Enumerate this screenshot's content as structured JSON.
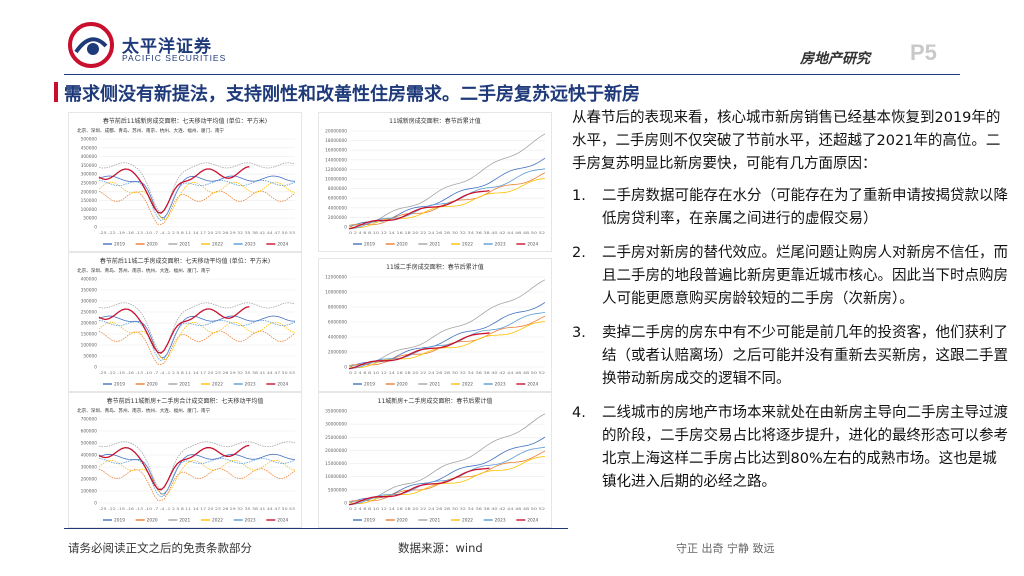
{
  "header": {
    "logo_cn": "太平洋证券",
    "logo_en": "PACIFIC SECURITIES",
    "section": "房地产研究",
    "page": "P5"
  },
  "title": "需求侧没有新提法，支持刚性和改善性住房需求。二手房复苏远快于新房",
  "charts": [
    {
      "title": "春节前后11城新房成交面积：七天移动平均值",
      "note": "(单位：平方米)",
      "sub": "北京、深圳、成都、青岛、苏州、南京、杭州、大连、福州、厦门、南宁",
      "yticks": [
        "500000",
        "450000",
        "400000",
        "350000",
        "300000",
        "250000",
        "200000",
        "150000",
        "100000",
        "50000",
        "0"
      ],
      "xticks": "-25 -22 -19 -16 -13 -10 -7 -4 -1 2 5 8 11 14 17 20 23 26 29 32 35 38 41 44 47 50 53",
      "legend": [
        "2019",
        "2020",
        "2021",
        "2022",
        "2023",
        "2024"
      ]
    },
    {
      "title": "11城新房成交面积：春节后累计值",
      "sub": "",
      "yticks": [
        "20000000",
        "18000000",
        "16000000",
        "14000000",
        "12000000",
        "10000000",
        "8000000",
        "6000000",
        "4000000",
        "2000000",
        "0"
      ],
      "xticks": "0 2 4 6 8 10 12 14 16 18 20 22 24 26 28 30 32 34 36 38 40 42 44 46 48 50 52",
      "legend": [
        "2019",
        "2020",
        "2021",
        "2022",
        "2023",
        "2024"
      ]
    },
    {
      "title": "春节前后11城二手房成交面积：七天移动平均值",
      "note": "(单位：平方米)",
      "sub": "北京、深圳、青岛、苏州、南京、杭州、大连、福州、厦门、南宁",
      "yticks": [
        "400000",
        "350000",
        "300000",
        "250000",
        "200000",
        "150000",
        "100000",
        "50000",
        "0"
      ],
      "xticks": "-25 -22 -19 -16 -13 -10 -7 -4 -1 2 5 8 11 14 17 20 23 26 29 32 35 38 41 44 47 50 53",
      "legend": [
        "2019",
        "2020",
        "2021",
        "2022",
        "2023",
        "2024"
      ]
    },
    {
      "title": "11城二手房成交面积：春节后累计值",
      "sub": "",
      "yticks": [
        "12000000",
        "10000000",
        "8000000",
        "6000000",
        "4000000",
        "2000000",
        "0"
      ],
      "xticks": "0 2 4 6 8 10 12 14 16 18 20 22 24 26 28 30 32 34 36 38 40 42 44 46 48 50 52",
      "legend": [
        "2019",
        "2020",
        "2021",
        "2022",
        "2023",
        "2024"
      ]
    },
    {
      "title": "春节前后11城新房+二手房合计成交面积：七天移动平均值",
      "sub": "北京、深圳、青岛、苏州、南京、杭州、大连、福州、厦门、南宁",
      "yticks": [
        "700000",
        "600000",
        "500000",
        "400000",
        "300000",
        "200000",
        "100000",
        "0"
      ],
      "xticks": "-25 -22 -19 -16 -13 -10 -7 -4 -1 2 5 8 11 14 17 20 23 26 29 32 35 38 41 44 47 50 53",
      "legend": [
        "2019",
        "2020",
        "2021",
        "2022",
        "2023",
        "2024"
      ]
    },
    {
      "title": "11城新房+二手房成交面积：春节后累计值",
      "sub": "",
      "yticks": [
        "35000000",
        "30000000",
        "25000000",
        "20000000",
        "15000000",
        "10000000",
        "5000000",
        "0"
      ],
      "xticks": "0 2 4 6 8 10 12 14 16 18 20 22 24 26 28 30 32 34 36 38 40 42 44 46 48 50 52",
      "legend": [
        "2019",
        "2020",
        "2021",
        "2022",
        "2023",
        "2024"
      ]
    }
  ],
  "series_colors": [
    "#4472c4",
    "#ed7d31",
    "#a5a5a5",
    "#ffc000",
    "#5b9bd5",
    "#c8102e"
  ],
  "body": {
    "intro": "从春节后的表现来看，核心城市新房销售已经基本恢复到2019年的水平，二手房则不仅突破了节前水平，还超越了2021年的高位。二手房复苏明显比新房要快，可能有几方面原因：",
    "items": [
      {
        "num": "1.",
        "text": "二手房数据可能存在水分（可能存在为了重新申请按揭贷款以降低房贷利率，在亲属之间进行的虚假交易）"
      },
      {
        "num": "2.",
        "text": "二手房对新房的替代效应。烂尾问题让购房人对新房不信任，而且二手房的地段普遍比新房更靠近城市核心。因此当下时点购房人可能更愿意购买房龄较短的二手房（次新房）。"
      },
      {
        "num": "3.",
        "text": "卖掉二手房的房东中有不少可能是前几年的投资客，他们获利了结（或者认赔离场）之后可能并没有重新去买新房，这跟二手置换带动新房成交的逻辑不同。"
      },
      {
        "num": "4.",
        "text": "二线城市的房地产市场本来就处在由新房主导向二手房主导过渡的阶段，二手房交易占比将逐步提升，进化的最终形态可以参考北京上海这样二手房占比达到80%左右的成熟市场。这也是城镇化进入后期的必经之路。"
      }
    ]
  },
  "footer": {
    "disclaimer": "请务必阅读正文之后的免责条款部分",
    "source": "数据来源：wind",
    "motto": "守正  出奇  宁静  致远"
  }
}
